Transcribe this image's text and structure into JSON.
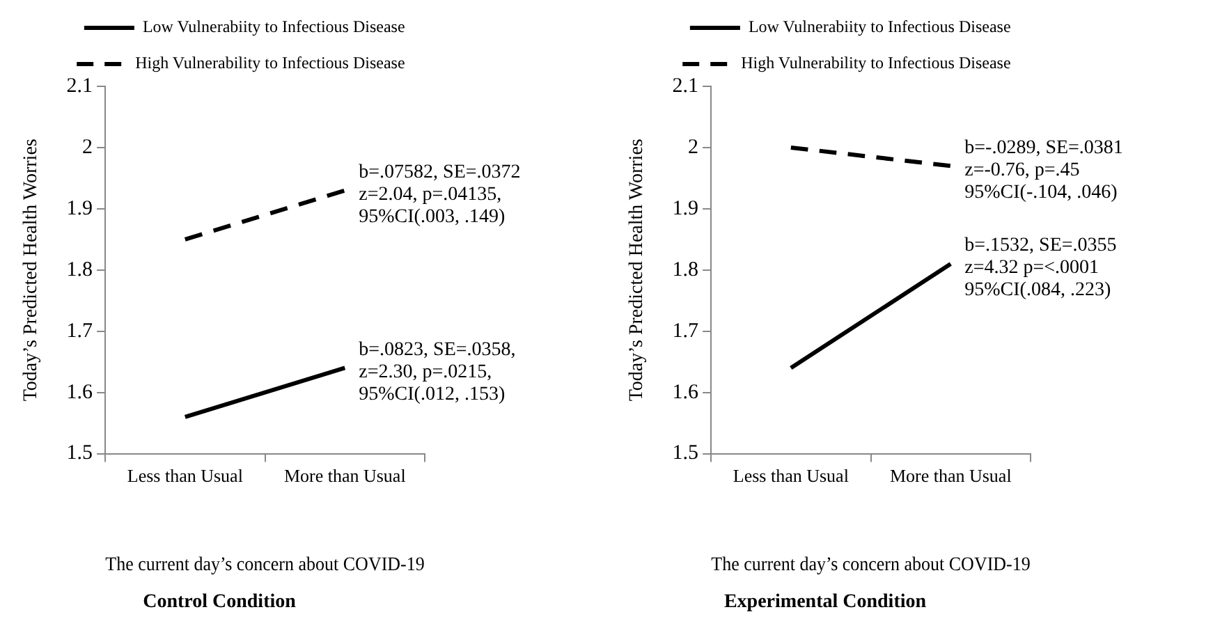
{
  "chart_data": [
    {
      "type": "line",
      "title": "Control Condition",
      "xlabel": "The current day’s concern about COVID-19",
      "ylabel": "Today’s Predicted Health Worries",
      "categories": [
        "Less than Usual",
        "More than Usual"
      ],
      "series": [
        {
          "name": "Low Vulnerabiity to Infectious Disease",
          "color": "#000000",
          "values": [
            1.56,
            1.64
          ],
          "line_style": "solid"
        },
        {
          "name": "High Vulnerability to Infectious Disease",
          "color": "#000000",
          "values": [
            1.85,
            1.93
          ],
          "line_style": "dashed"
        }
      ],
      "ylim": [
        1.5,
        2.1
      ],
      "yticks": [
        1.5,
        1.6,
        1.7,
        1.8,
        1.9,
        2,
        2.1
      ],
      "grid": false,
      "legend": "top",
      "marker": "none",
      "annotations": [
        {
          "text": "b=.07582, SE=.0372\nz=2.04, p=.04135,\n95%CI(.003, .149)",
          "x": "More than Usual",
          "y": 1.93
        },
        {
          "text": "b=.0823, SE=.0358,\nz=2.30, p=.0215,\n95%CI(.012, .153)",
          "x": "More than Usual",
          "y": 1.64
        }
      ]
    },
    {
      "type": "line",
      "title": "Experimental Condition",
      "xlabel": "The current day’s concern about COVID-19",
      "ylabel": "Today’s Predicted Health Worries",
      "categories": [
        "Less than Usual",
        "More than Usual"
      ],
      "series": [
        {
          "name": "Low Vulnerabiity to Infectious Disease",
          "color": "#000000",
          "values": [
            1.64,
            1.81
          ],
          "line_style": "solid"
        },
        {
          "name": "High Vulnerability to Infectious Disease",
          "color": "#000000",
          "values": [
            2.0,
            1.97
          ],
          "line_style": "dashed"
        }
      ],
      "ylim": [
        1.5,
        2.1
      ],
      "yticks": [
        1.5,
        1.6,
        1.7,
        1.8,
        1.9,
        2,
        2.1
      ],
      "grid": false,
      "legend": "top",
      "marker": "none",
      "annotations": [
        {
          "text": "b=-.0289, SE=.0381\nz=-0.76, p=.45\n95%CI(-.104, .046)",
          "x": "More than Usual",
          "y": 1.97
        },
        {
          "text": "b=.1532, SE=.0355\nz=4.32 p=<.0001\n95%CI(.084, .223)",
          "x": "More than Usual",
          "y": 1.81
        }
      ]
    }
  ]
}
